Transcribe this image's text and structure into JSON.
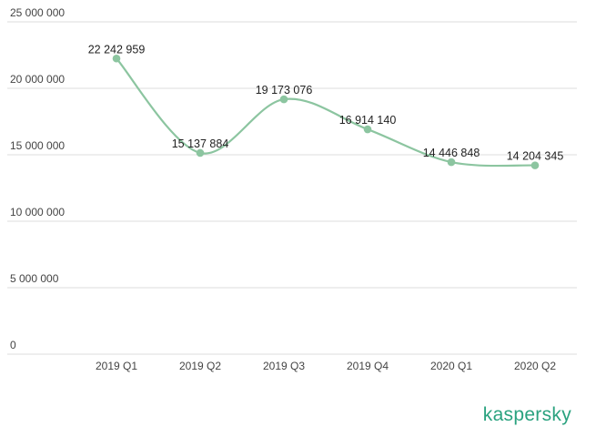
{
  "chart_data": {
    "type": "line",
    "categories": [
      "2019 Q1",
      "2019 Q2",
      "2019 Q3",
      "2019 Q4",
      "2020 Q1",
      "2020 Q2"
    ],
    "values": [
      22242959,
      15137884,
      19173076,
      16914140,
      14446848,
      14204345
    ],
    "value_labels": [
      "22 242 959",
      "15 137 884",
      "19 173 076",
      "16 914 140",
      "14 446 848",
      "14 204 345"
    ],
    "y_ticks": [
      0,
      5000000,
      10000000,
      15000000,
      20000000,
      25000000
    ],
    "y_tick_labels": [
      "0",
      "5 000 000",
      "10 000 000",
      "15 000 000",
      "20 000 000",
      "25 000 000"
    ],
    "ylim": [
      0,
      25000000
    ],
    "grid": true,
    "smooth": true,
    "line_color": "#8cc5a0",
    "grid_color": "#dddddd"
  },
  "brand": {
    "logo_text": "kaspersky",
    "logo_color": "#2aa27f"
  }
}
